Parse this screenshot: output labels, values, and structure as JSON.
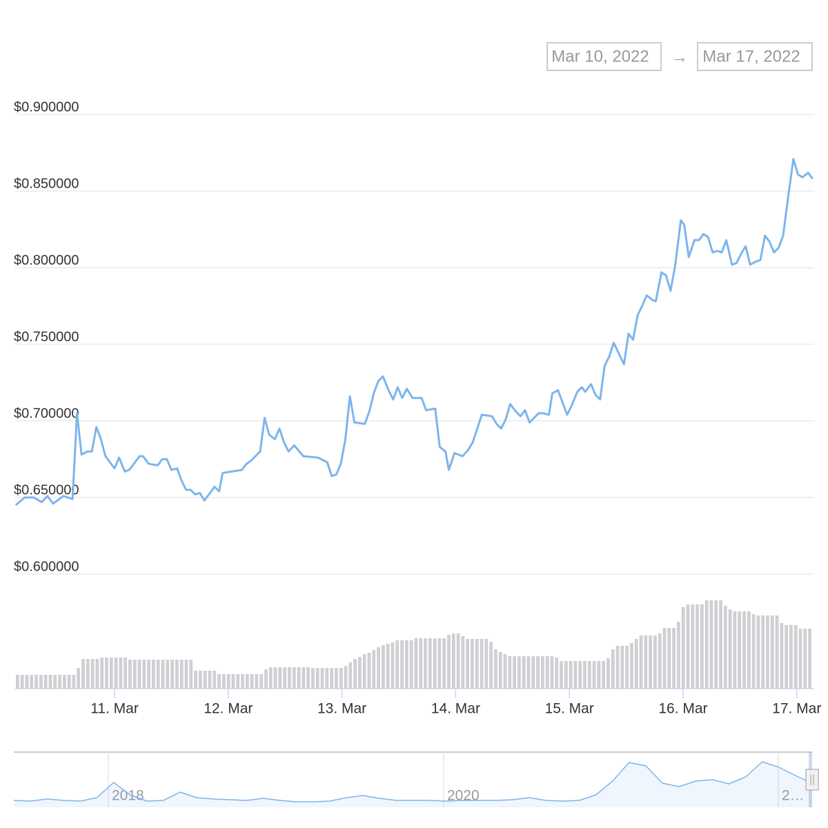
{
  "date_range": {
    "from": "Mar 10, 2022",
    "separator": "→",
    "to": "Mar 17, 2022"
  },
  "chart_data": [
    {
      "type": "line",
      "color": "#7cb5ec",
      "x": [
        10.13,
        10.21,
        10.29,
        10.36,
        10.41,
        10.46,
        10.55,
        10.63,
        10.67,
        10.71,
        10.76,
        10.8,
        10.84,
        10.88,
        10.92,
        11.0,
        11.04,
        11.09,
        11.13,
        11.22,
        11.25,
        11.3,
        11.38,
        11.42,
        11.46,
        11.5,
        11.55,
        11.59,
        11.63,
        11.67,
        11.71,
        11.75,
        11.79,
        11.88,
        11.92,
        11.95,
        12.12,
        12.16,
        12.2,
        12.28,
        12.32,
        12.36,
        12.41,
        12.45,
        12.49,
        12.53,
        12.58,
        12.66,
        12.79,
        12.87,
        12.91,
        12.95,
        12.99,
        13.03,
        13.07,
        13.11,
        13.2,
        13.24,
        13.28,
        13.32,
        13.36,
        13.41,
        13.45,
        13.49,
        13.53,
        13.57,
        13.62,
        13.7,
        13.74,
        13.82,
        13.86,
        13.91,
        13.94,
        13.99,
        14.06,
        14.11,
        14.15,
        14.19,
        14.23,
        14.32,
        14.36,
        14.4,
        14.44,
        14.48,
        14.52,
        14.57,
        14.61,
        14.65,
        14.73,
        14.77,
        14.82,
        14.85,
        14.9,
        14.98,
        15.02,
        15.07,
        15.11,
        15.14,
        15.19,
        15.23,
        15.27,
        15.31,
        15.35,
        15.39,
        15.48,
        15.52,
        15.56,
        15.6,
        15.64,
        15.68,
        15.73,
        15.76,
        15.81,
        15.85,
        15.89,
        15.93,
        15.98,
        16.01,
        16.05,
        16.1,
        16.14,
        16.18,
        16.22,
        16.26,
        16.3,
        16.34,
        16.38,
        16.43,
        16.47,
        16.51,
        16.55,
        16.59,
        16.64,
        16.68,
        16.72,
        16.76,
        16.8,
        16.84,
        16.88,
        16.92,
        16.97,
        17.01,
        17.05,
        17.1,
        17.14
      ],
      "values": [
        0.645,
        0.65,
        0.65,
        0.647,
        0.651,
        0.646,
        0.651,
        0.649,
        0.705,
        0.678,
        0.68,
        0.68,
        0.696,
        0.688,
        0.677,
        0.669,
        0.676,
        0.667,
        0.668,
        0.677,
        0.677,
        0.672,
        0.671,
        0.675,
        0.675,
        0.668,
        0.669,
        0.661,
        0.655,
        0.655,
        0.652,
        0.653,
        0.648,
        0.657,
        0.654,
        0.666,
        0.668,
        0.672,
        0.674,
        0.68,
        0.702,
        0.691,
        0.688,
        0.695,
        0.686,
        0.68,
        0.684,
        0.677,
        0.676,
        0.673,
        0.664,
        0.665,
        0.672,
        0.688,
        0.716,
        0.699,
        0.698,
        0.706,
        0.718,
        0.726,
        0.729,
        0.72,
        0.714,
        0.722,
        0.715,
        0.721,
        0.715,
        0.715,
        0.707,
        0.708,
        0.683,
        0.68,
        0.668,
        0.679,
        0.677,
        0.681,
        0.686,
        0.695,
        0.704,
        0.703,
        0.698,
        0.695,
        0.701,
        0.711,
        0.707,
        0.703,
        0.707,
        0.699,
        0.705,
        0.705,
        0.704,
        0.718,
        0.72,
        0.704,
        0.71,
        0.719,
        0.722,
        0.719,
        0.724,
        0.717,
        0.714,
        0.736,
        0.742,
        0.751,
        0.737,
        0.757,
        0.753,
        0.769,
        0.775,
        0.782,
        0.779,
        0.778,
        0.797,
        0.795,
        0.785,
        0.801,
        0.831,
        0.828,
        0.807,
        0.818,
        0.818,
        0.822,
        0.82,
        0.81,
        0.811,
        0.81,
        0.818,
        0.802,
        0.803,
        0.809,
        0.814,
        0.802,
        0.804,
        0.805,
        0.821,
        0.817,
        0.81,
        0.813,
        0.821,
        0.844,
        0.871,
        0.861,
        0.859,
        0.862,
        0.858
      ],
      "xlim": [
        10.126,
        17.135
      ],
      "xticks": [
        {
          "value": 11,
          "label": "11. Mar"
        },
        {
          "value": 12,
          "label": "12. Mar"
        },
        {
          "value": 13,
          "label": "13. Mar"
        },
        {
          "value": 14,
          "label": "14. Mar"
        },
        {
          "value": 15,
          "label": "15. Mar"
        },
        {
          "value": 16,
          "label": "16. Mar"
        },
        {
          "value": 17,
          "label": "17. Mar"
        }
      ],
      "ylim": [
        0.6,
        0.9
      ],
      "yticks": [
        {
          "value": 0.6,
          "label": "$0.600000"
        },
        {
          "value": 0.65,
          "label": "$0.650000"
        },
        {
          "value": 0.7,
          "label": "$0.700000"
        },
        {
          "value": 0.75,
          "label": "$0.750000"
        },
        {
          "value": 0.8,
          "label": "$0.800000"
        },
        {
          "value": 0.85,
          "label": "$0.850000"
        },
        {
          "value": 0.9,
          "label": "$0.900000"
        }
      ],
      "grid": true
    },
    {
      "type": "bar",
      "color": "#cfcfd4",
      "ylim": [
        0,
        130
      ],
      "values": [
        20,
        20,
        20,
        20,
        20,
        20,
        20,
        20,
        20,
        20,
        20,
        20,
        20,
        30,
        43,
        43,
        43,
        43,
        45,
        45,
        45,
        45,
        45,
        45,
        42,
        42,
        42,
        42,
        42,
        42,
        42,
        42,
        42,
        42,
        42,
        42,
        42,
        42,
        26,
        26,
        26,
        26,
        26,
        21,
        21,
        21,
        21,
        21,
        21,
        21,
        21,
        21,
        21,
        28,
        31,
        31,
        31,
        31,
        31,
        31,
        31,
        31,
        31,
        30,
        30,
        30,
        30,
        30,
        30,
        30,
        33,
        38,
        43,
        46,
        50,
        52,
        56,
        60,
        63,
        65,
        67,
        70,
        70,
        70,
        70,
        73,
        73,
        73,
        73,
        73,
        73,
        73,
        78,
        80,
        80,
        76,
        72,
        72,
        72,
        72,
        72,
        68,
        57,
        53,
        50,
        47,
        47,
        47,
        47,
        47,
        47,
        47,
        47,
        47,
        47,
        45,
        40,
        40,
        40,
        40,
        40,
        40,
        40,
        40,
        40,
        40,
        44,
        57,
        62,
        62,
        62,
        66,
        72,
        77,
        77,
        77,
        77,
        80,
        88,
        88,
        88,
        97,
        118,
        122,
        122,
        122,
        122,
        128,
        128,
        128,
        128,
        120,
        115,
        112,
        112,
        112,
        112,
        108,
        106,
        106,
        106,
        106,
        106,
        95,
        92,
        92,
        92,
        87,
        87,
        87
      ]
    },
    {
      "type": "line",
      "color": "#7cb5ec",
      "ylim": [
        0,
        80
      ],
      "xticks": [
        "2018",
        "2020",
        "2…"
      ],
      "values": [
        10,
        9,
        12,
        10,
        9,
        14,
        36,
        18,
        9,
        10,
        22,
        14,
        12,
        11,
        10,
        13,
        10,
        8,
        8,
        9,
        14,
        17,
        13,
        10,
        10,
        10,
        9,
        10,
        10,
        10,
        11,
        14,
        10,
        9,
        10,
        18,
        38,
        65,
        60,
        35,
        30,
        38,
        40,
        34,
        44,
        66,
        58,
        46,
        35
      ]
    }
  ]
}
